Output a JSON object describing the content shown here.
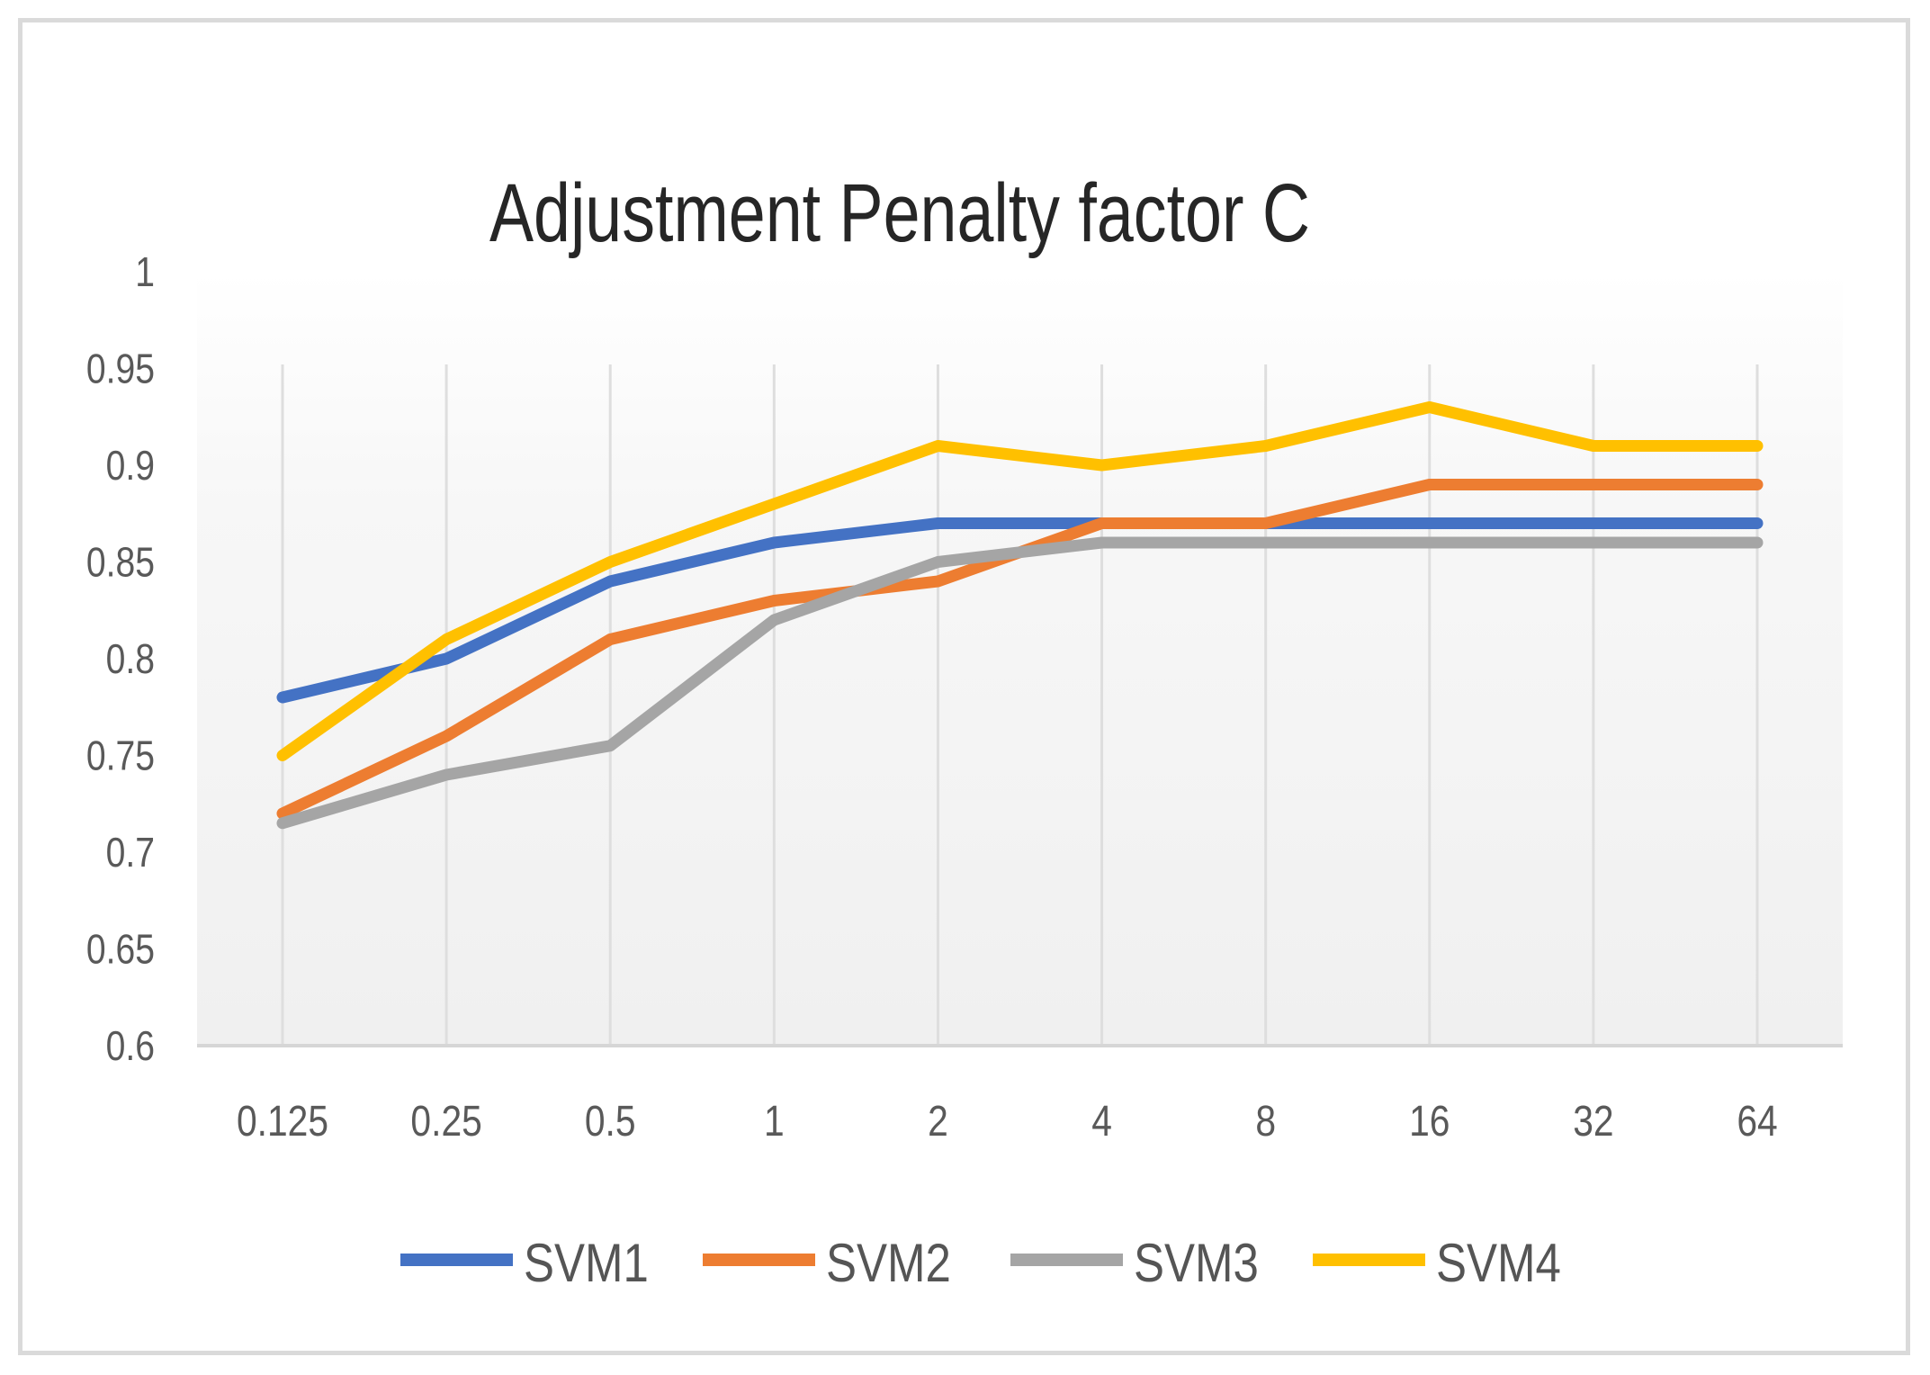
{
  "chart_data": {
    "type": "line",
    "title": "Adjustment Penalty factor C",
    "xlabel": "",
    "ylabel": "",
    "categories": [
      "0.125",
      "0.25",
      "0.5",
      "1",
      "2",
      "4",
      "8",
      "16",
      "32",
      "64"
    ],
    "series": [
      {
        "name": "SVM1",
        "color": "#4472C4",
        "values": [
          0.78,
          0.8,
          0.84,
          0.86,
          0.87,
          0.87,
          0.87,
          0.87,
          0.87,
          0.87
        ]
      },
      {
        "name": "SVM2",
        "color": "#ED7D31",
        "values": [
          0.72,
          0.76,
          0.81,
          0.83,
          0.84,
          0.87,
          0.87,
          0.89,
          0.89,
          0.89
        ]
      },
      {
        "name": "SVM3",
        "color": "#A5A5A5",
        "values": [
          0.715,
          0.74,
          0.755,
          0.82,
          0.85,
          0.86,
          0.86,
          0.86,
          0.86,
          0.86
        ]
      },
      {
        "name": "SVM4",
        "color": "#FFC000",
        "values": [
          0.75,
          0.81,
          0.85,
          0.88,
          0.91,
          0.9,
          0.91,
          0.93,
          0.91,
          0.91
        ]
      }
    ],
    "y_axis": {
      "min": 0.6,
      "max": 1.0,
      "step": 0.05,
      "tick_labels": [
        "1",
        "0.95",
        "0.9",
        "0.85",
        "0.8",
        "0.75",
        "0.7",
        "0.65",
        "0.6"
      ]
    },
    "x_axis": {
      "tick_labels": [
        "0.125",
        "0.25",
        "0.5",
        "1",
        "2",
        "4",
        "8",
        "16",
        "32",
        "64"
      ]
    },
    "legend": {
      "position": "bottom",
      "entries": [
        "SVM1",
        "SVM2",
        "SVM3",
        "SVM4"
      ]
    },
    "grid": {
      "vertical": true,
      "horizontal": false
    },
    "colors": {
      "gridline": "#dedede",
      "axis_line": "#d6d6d6",
      "tick_label": "#595959",
      "title": "#262626",
      "legend_label": "#555555",
      "frame_border": "#dadada",
      "plot_bg_top": "#ffffff",
      "plot_bg_bottom": "#f0f0f0"
    }
  }
}
